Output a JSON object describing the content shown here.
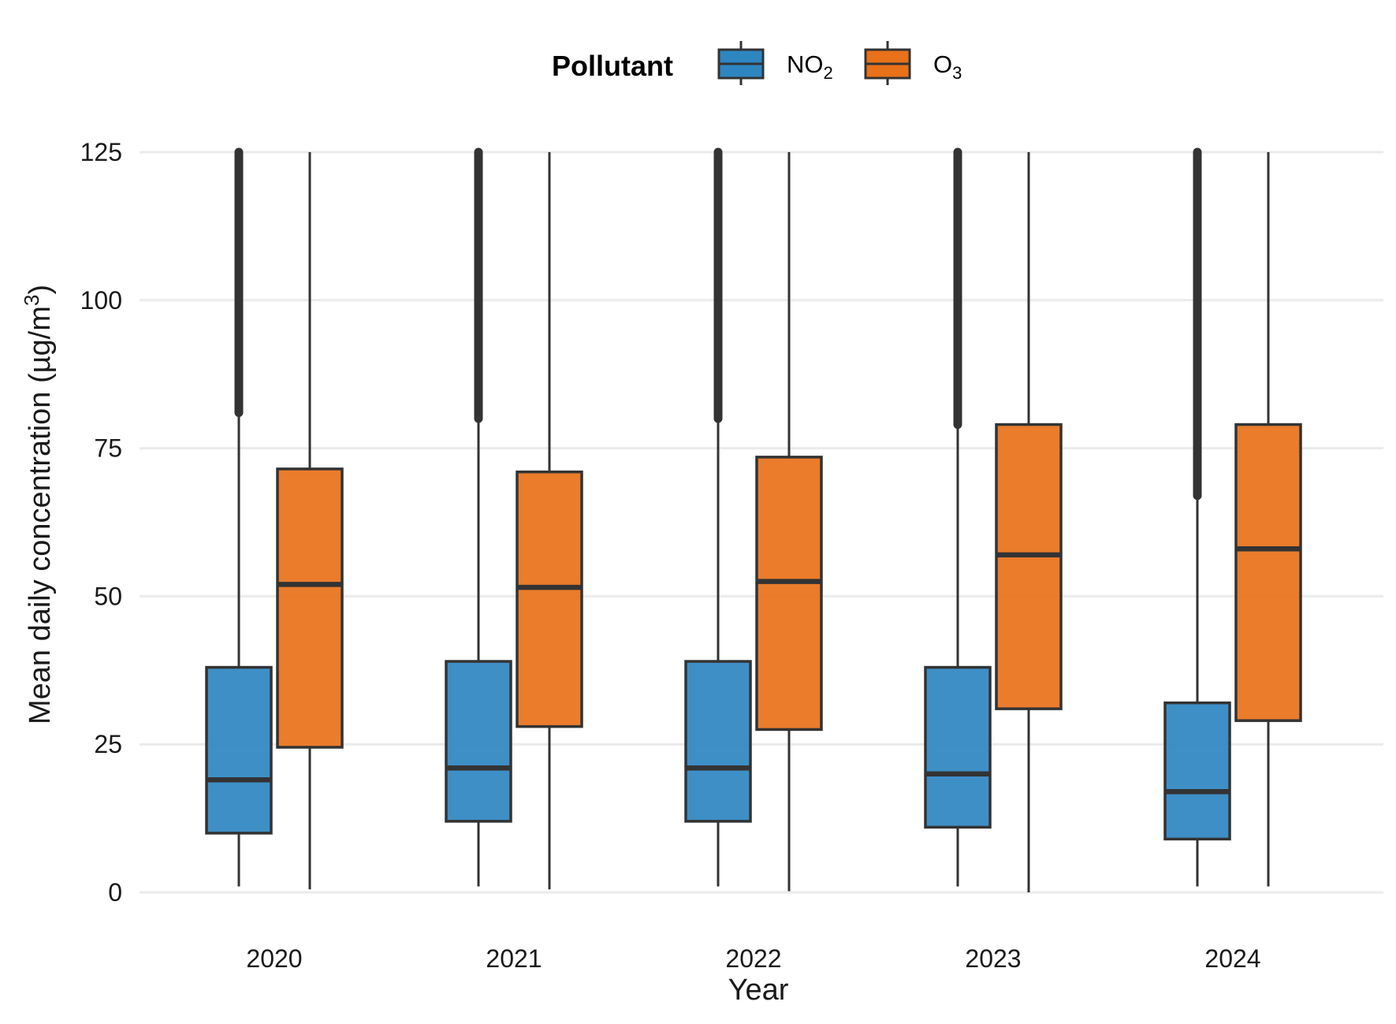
{
  "chart_data": {
    "type": "boxplot",
    "xlabel": "Year",
    "ylabel": "Mean daily concentration (µg/m",
    "ylabel_sup": "3",
    "ylabel_tail": ")",
    "ylim": [
      0,
      125
    ],
    "yticks": [
      0,
      25,
      50,
      75,
      100,
      125
    ],
    "grid": "horizontal",
    "legend": {
      "title": "Pollutant",
      "placement": "top",
      "entries": [
        {
          "base": "NO",
          "sub": "2",
          "color": "#2e86c1"
        },
        {
          "base": "O",
          "sub": "3",
          "color": "#e8711a"
        }
      ]
    },
    "categories": [
      "2020",
      "2021",
      "2022",
      "2023",
      "2024"
    ],
    "series": [
      {
        "name": "NO2",
        "color": "#2e86c1",
        "boxes": [
          {
            "whisker_low": 1,
            "q1": 10,
            "median": 19,
            "q3": 38,
            "whisker_high": 81,
            "outliers_high": [
              81,
              125
            ]
          },
          {
            "whisker_low": 1,
            "q1": 12,
            "median": 21,
            "q3": 39,
            "whisker_high": 80,
            "outliers_high": [
              80,
              125
            ]
          },
          {
            "whisker_low": 1,
            "q1": 12,
            "median": 21,
            "q3": 39,
            "whisker_high": 80,
            "outliers_high": [
              80,
              125
            ]
          },
          {
            "whisker_low": 1,
            "q1": 11,
            "median": 20,
            "q3": 38,
            "whisker_high": 79,
            "outliers_high": [
              79,
              125
            ]
          },
          {
            "whisker_low": 1,
            "q1": 9,
            "median": 17,
            "q3": 32,
            "whisker_high": 67,
            "outliers_high": [
              67,
              125
            ]
          }
        ]
      },
      {
        "name": "O3",
        "color": "#e8711a",
        "boxes": [
          {
            "whisker_low": 0.5,
            "q1": 24.5,
            "median": 52,
            "q3": 71.5,
            "whisker_high": 125
          },
          {
            "whisker_low": 0.5,
            "q1": 28,
            "median": 51.5,
            "q3": 71,
            "whisker_high": 125
          },
          {
            "whisker_low": 0.2,
            "q1": 27.5,
            "median": 52.5,
            "q3": 73.5,
            "whisker_high": 125
          },
          {
            "whisker_low": 0,
            "q1": 31,
            "median": 57,
            "q3": 79,
            "whisker_high": 125
          },
          {
            "whisker_low": 1,
            "q1": 29,
            "median": 58,
            "q3": 79,
            "whisker_high": 125
          }
        ]
      }
    ]
  }
}
